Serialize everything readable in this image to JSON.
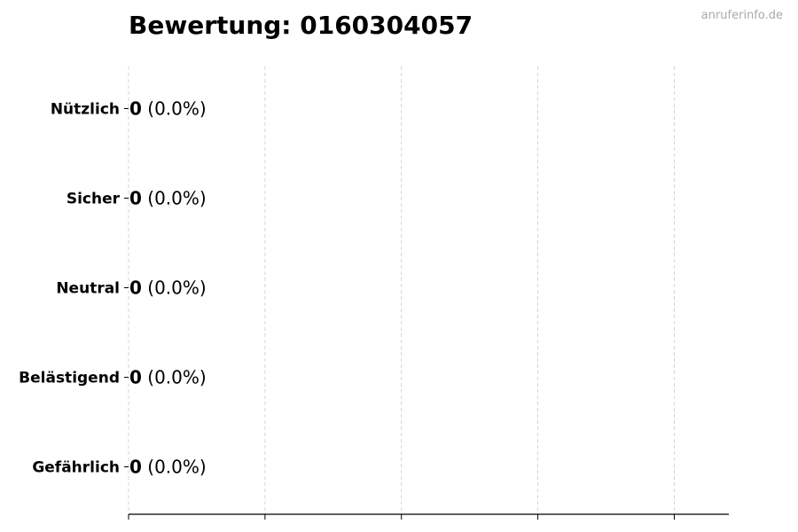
{
  "title": "Bewertung: 0160304057",
  "watermark": "anruferinfo.de",
  "chart_data": {
    "type": "bar",
    "orientation": "horizontal",
    "title": "Bewertung: 0160304057",
    "categories": [
      "Nützlich",
      "Sicher",
      "Neutral",
      "Belästigend",
      "Gefährlich"
    ],
    "values": [
      0,
      0,
      0,
      0,
      0
    ],
    "data_labels": [
      "0 (0.0%)",
      "0 (0.0%)",
      "0 (0.0%)",
      "0 (0.0%)",
      "0 (0.0%)"
    ],
    "xlim": [
      0,
      4.4
    ],
    "xticks": [
      0,
      1,
      2,
      3,
      4
    ],
    "xtick_labels_shown": false,
    "grid": "x dashed",
    "colors": {
      "bar_edge": "#000000",
      "grid": "#cccccc",
      "watermark": "#aaaaaa"
    }
  }
}
